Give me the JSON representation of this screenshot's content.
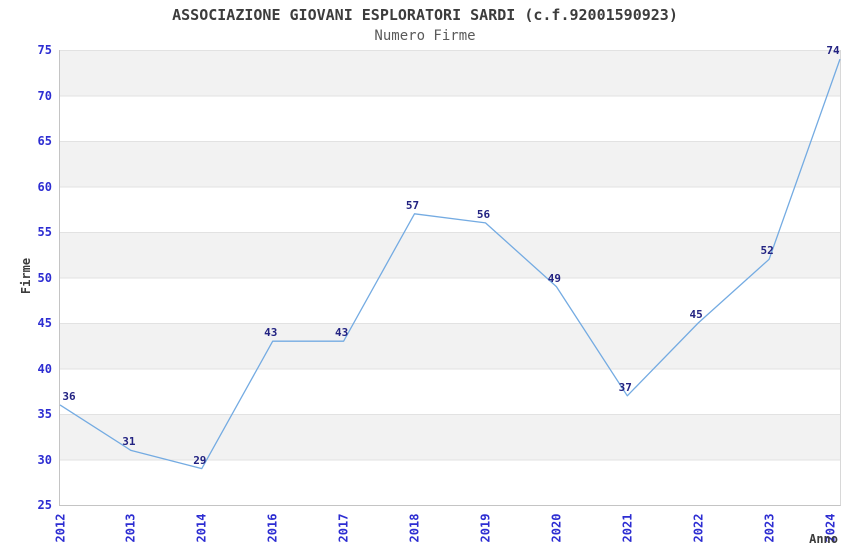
{
  "chart_data": {
    "type": "line",
    "title": "ASSOCIAZIONE GIOVANI ESPLORATORI SARDI (c.f.92001590923)",
    "subtitle": "Numero Firme",
    "xlabel": "Anno",
    "ylabel": "Firme",
    "categories": [
      "2012",
      "2013",
      "2014",
      "2016",
      "2017",
      "2018",
      "2019",
      "2020",
      "2021",
      "2022",
      "2023",
      "2024"
    ],
    "values": [
      36,
      31,
      29,
      43,
      43,
      57,
      56,
      49,
      37,
      45,
      52,
      74
    ],
    "ylim": [
      25,
      75
    ],
    "ytick_step": 5,
    "grid": "horizontal gridlines every 5 units with alternating gray/white bands",
    "legend": "none",
    "data_labels": true,
    "colors": {
      "line": "#74abe2",
      "data_label": "#232382",
      "tick_label": "#2d2dd2",
      "axis_title": "#3c3c3c",
      "band_gray": "#f2f2f2",
      "grid_line": "#e2e2e2",
      "axis_line": "#c4c4c4"
    }
  }
}
